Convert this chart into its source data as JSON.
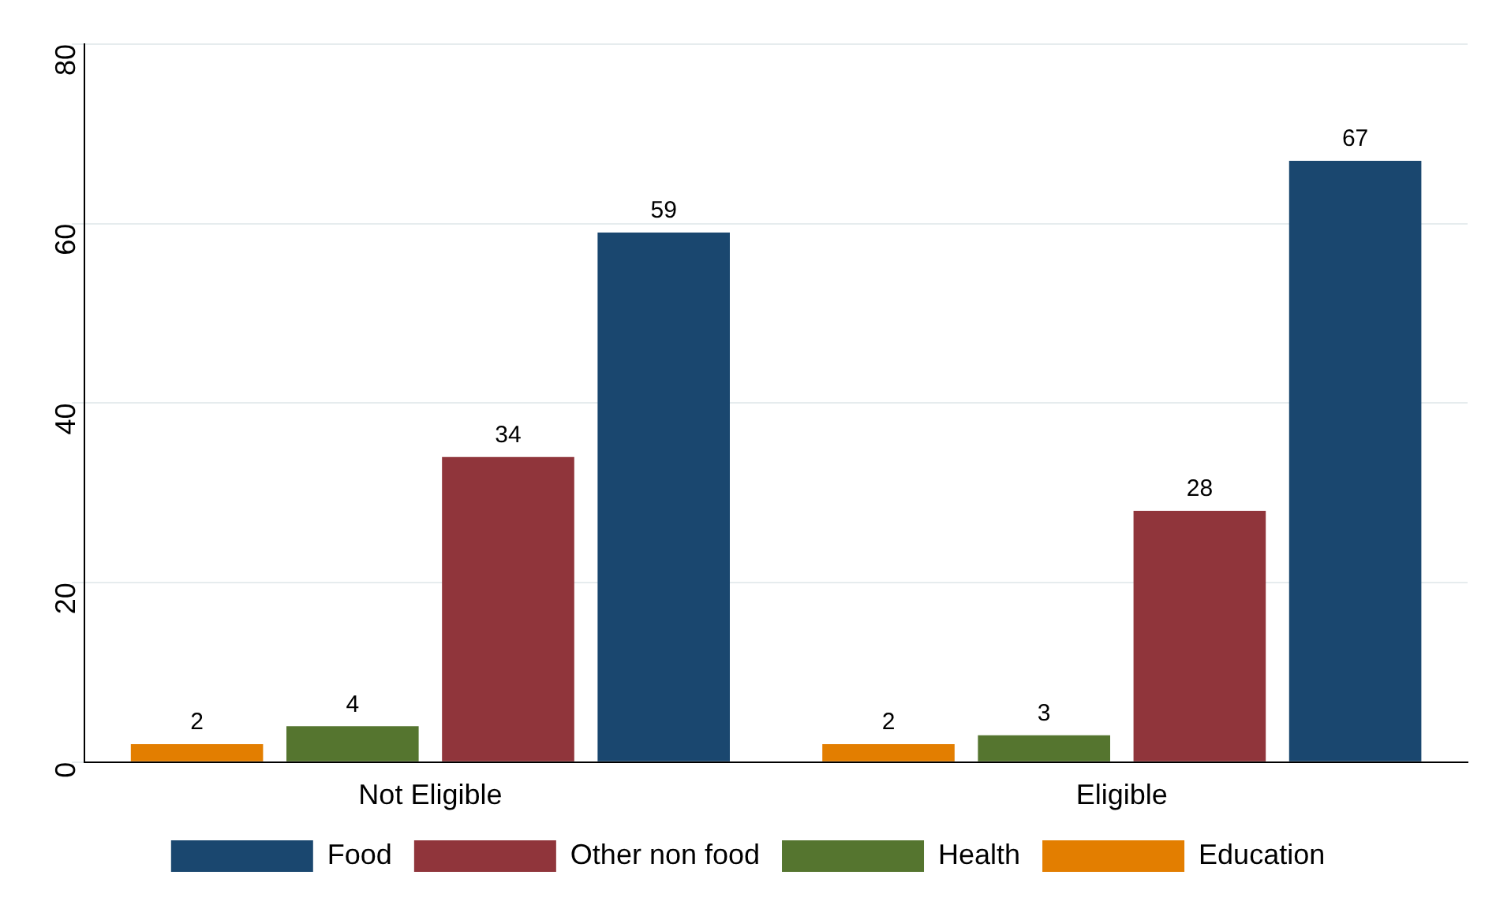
{
  "chart_data": {
    "type": "bar",
    "categories": [
      "Not Eligible",
      "Eligible"
    ],
    "series": [
      {
        "name": "Education",
        "color": "#e37e00",
        "values": [
          2,
          2
        ]
      },
      {
        "name": "Health",
        "color": "#55752f",
        "values": [
          4,
          3
        ]
      },
      {
        "name": "Other non food",
        "color": "#90353b",
        "values": [
          34,
          28
        ]
      },
      {
        "name": "Food",
        "color": "#1a476f",
        "values": [
          59,
          67
        ]
      }
    ],
    "ylim": [
      0,
      80
    ],
    "yticks": [
      0,
      20,
      40,
      60,
      80
    ],
    "grid": "y",
    "legend": "bottom",
    "data_labels": true
  }
}
